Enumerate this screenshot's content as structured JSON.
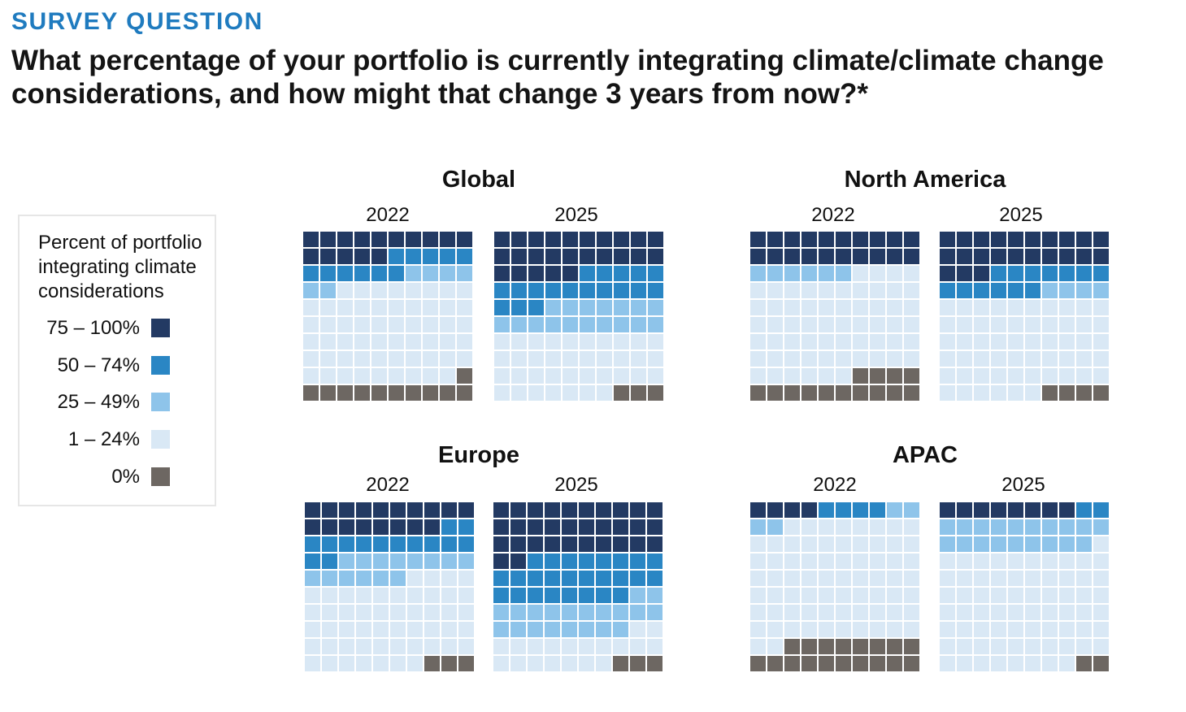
{
  "header": {
    "kicker": "SURVEY QUESTION",
    "question": "What percentage of your portfolio is currently integrating climate/climate change considerations, and how might that change 3 years from now?*"
  },
  "legend": {
    "title": "Percent of portfolio integrating climate considerations",
    "items": [
      {
        "label": "75 – 100%",
        "color": "#233a63"
      },
      {
        "label": "50 – 74%",
        "color": "#2a86c4"
      },
      {
        "label": "25 – 49%",
        "color": "#8ec4ea"
      },
      {
        "label": "1 – 24%",
        "color": "#d9e8f5"
      },
      {
        "label": "0%",
        "color": "#6d6762"
      }
    ]
  },
  "chart_data": {
    "type": "waffle",
    "grid": "10x10",
    "unit": "percent of respondents",
    "categories": [
      "75 – 100%",
      "50 – 74%",
      "25 – 49%",
      "1 – 24%",
      "0%"
    ],
    "colors": [
      "#233a63",
      "#2a86c4",
      "#8ec4ea",
      "#d9e8f5",
      "#6d6762"
    ],
    "panels": [
      {
        "region": "Global",
        "year": "2022",
        "values": [
          15,
          11,
          6,
          57,
          11
        ]
      },
      {
        "region": "Global",
        "year": "2025",
        "values": [
          25,
          18,
          17,
          37,
          3
        ]
      },
      {
        "region": "North America",
        "year": "2022",
        "values": [
          20,
          0,
          6,
          60,
          14
        ]
      },
      {
        "region": "North America",
        "year": "2025",
        "values": [
          23,
          13,
          4,
          56,
          4
        ]
      },
      {
        "region": "Europe",
        "year": "2022",
        "values": [
          18,
          14,
          14,
          51,
          3
        ]
      },
      {
        "region": "Europe",
        "year": "2025",
        "values": [
          32,
          26,
          20,
          19,
          3
        ]
      },
      {
        "region": "APAC",
        "year": "2022",
        "values": [
          4,
          4,
          4,
          70,
          18
        ]
      },
      {
        "region": "APAC",
        "year": "2025",
        "values": [
          8,
          2,
          19,
          69,
          2
        ]
      }
    ]
  }
}
